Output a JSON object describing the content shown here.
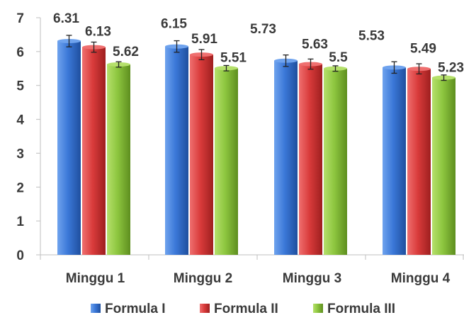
{
  "chart_data": {
    "type": "bar",
    "title": "",
    "xlabel": "",
    "ylabel": "",
    "categories": [
      "Minggu 1",
      "Minggu 2",
      "Minggu 3",
      "Minggu 4"
    ],
    "series": [
      {
        "name": "Formula I",
        "values": [
          6.31,
          6.15,
          5.73,
          5.53
        ],
        "labels": [
          "6.31",
          "6.15",
          "5.73",
          "5.53"
        ],
        "errors": [
          0.17,
          0.17,
          0.17,
          0.17
        ],
        "color": "#3b78d8",
        "color_light": "#6fa3ee",
        "color_dark": "#1f4f9e"
      },
      {
        "name": "Formula II",
        "values": [
          6.13,
          5.91,
          5.63,
          5.49
        ],
        "labels": [
          "6.13",
          "5.91",
          "5.63",
          "5.49"
        ],
        "errors": [
          0.15,
          0.15,
          0.15,
          0.15
        ],
        "color": "#d93b3b",
        "color_light": "#ef6f6f",
        "color_dark": "#9e1f1f"
      },
      {
        "name": "Formula III",
        "values": [
          5.62,
          5.51,
          5.5,
          5.23
        ],
        "labels": [
          "5.62",
          "5.51",
          "5.5",
          "5.23"
        ],
        "errors": [
          0.08,
          0.08,
          0.08,
          0.08
        ],
        "color": "#8dc63f",
        "color_light": "#b5e06b",
        "color_dark": "#5e8e1f"
      }
    ],
    "ylim": [
      0,
      7
    ],
    "yticks": [
      0,
      1,
      2,
      3,
      4,
      5,
      6,
      7
    ],
    "grid": false,
    "legend_position": "bottom"
  }
}
